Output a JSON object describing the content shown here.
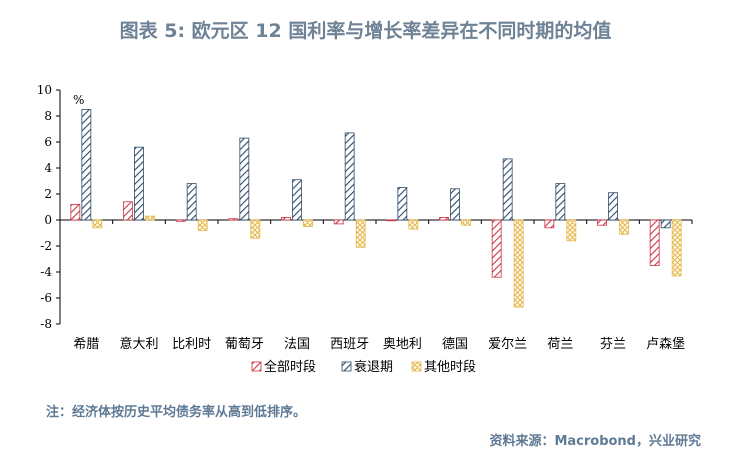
{
  "title": "图表 5:   欧元区 12 国利率与增长率差异在不同时期的均值",
  "note": "注：经济体按历史平均债务率从高到低排序。",
  "source": "资料来源：Macrobond，兴业研究",
  "chart_data": {
    "type": "bar",
    "unit_label": "%",
    "ylim": [
      -8,
      10
    ],
    "yticks": [
      10,
      8,
      6,
      4,
      2,
      0,
      -2,
      -4,
      -6,
      -8
    ],
    "grid": false,
    "legend_position": "bottom",
    "categories": [
      "希腊",
      "意大利",
      "比利时",
      "葡萄牙",
      "法国",
      "西班牙",
      "奥地利",
      "德国",
      "爱尔兰",
      "荷兰",
      "芬兰",
      "卢森堡"
    ],
    "series": [
      {
        "name": "全部时段",
        "color": "#cc3344",
        "pattern": "diagonal",
        "values": [
          1.2,
          1.4,
          -0.1,
          0.1,
          0.2,
          -0.3,
          0.0,
          0.2,
          -4.4,
          -0.6,
          -0.4,
          -3.5
        ]
      },
      {
        "name": "衰退期",
        "color": "#2e4a6b",
        "pattern": "diagonal",
        "values": [
          8.5,
          5.6,
          2.8,
          6.3,
          3.1,
          6.7,
          2.5,
          2.4,
          4.7,
          2.8,
          2.1,
          -0.6
        ]
      },
      {
        "name": "其他时段",
        "color": "#e6b84a",
        "pattern": "crosshatch",
        "values": [
          -0.6,
          0.3,
          -0.8,
          -1.4,
          -0.5,
          -2.1,
          -0.7,
          -0.4,
          -6.7,
          -1.6,
          -1.1,
          -4.3
        ]
      }
    ]
  }
}
